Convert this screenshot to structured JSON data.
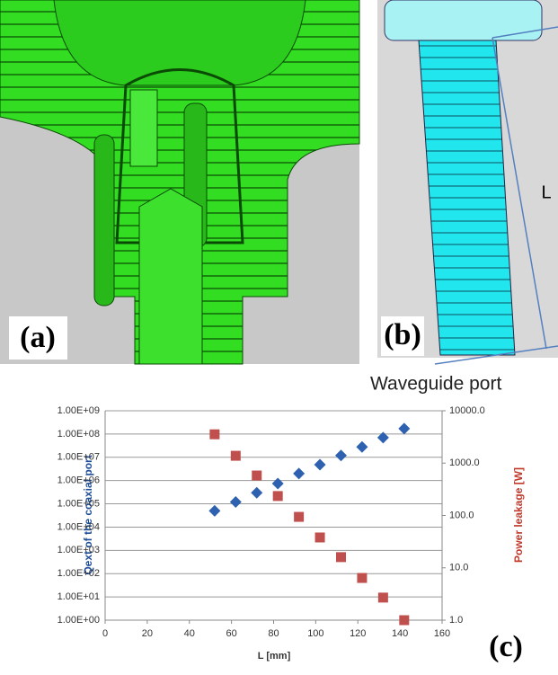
{
  "panels": {
    "a": "(a)",
    "b": "(b)",
    "c": "(c)",
    "length_label": "L",
    "port_label": "Waveguide port"
  },
  "chart_data": {
    "type": "scatter",
    "xlabel": "L [mm]",
    "ylabel": "Qext of the coaxial port",
    "y2label": "Power leakage [W]",
    "x": [
      52,
      62,
      72,
      82,
      92,
      102,
      112,
      122,
      132,
      142
    ],
    "series": [
      {
        "color": "#2e62b0",
        "marker": "diamond",
        "values": [
          50000,
          120000,
          300000,
          740000,
          2000000,
          4800000,
          12000000,
          28000000,
          70000000,
          170000000
        ]
      },
      {
        "color": "#c0504d",
        "marker": "square",
        "axis": "y2",
        "values": [
          3550,
          1380,
          580,
          235,
          94,
          38,
          16,
          6.4,
          2.7,
          1.0
        ]
      }
    ],
    "xlim": [
      0,
      160
    ],
    "xticks": [
      0,
      20,
      40,
      60,
      80,
      100,
      120,
      140,
      160
    ],
    "ylim": [
      1,
      1000000000
    ],
    "ylog": true,
    "yticks": [
      {
        "value": 1,
        "label": "1.00E+00"
      },
      {
        "value": 10,
        "label": "1.00E+01"
      },
      {
        "value": 100,
        "label": "1.00E+02"
      },
      {
        "value": 1000,
        "label": "1.00E+03"
      },
      {
        "value": 10000,
        "label": "1.00E+04"
      },
      {
        "value": 100000,
        "label": "1.00E+05"
      },
      {
        "value": 1000000,
        "label": "1.00E+06"
      },
      {
        "value": 10000000,
        "label": "1.00E+07"
      },
      {
        "value": 100000000,
        "label": "1.00E+08"
      },
      {
        "value": 1000000000,
        "label": "1.00E+09"
      }
    ],
    "y2lim": [
      1,
      10000
    ],
    "y2log": true,
    "y2ticks": [
      {
        "value": 1,
        "label": "1.0"
      },
      {
        "value": 10,
        "label": "10.0"
      },
      {
        "value": 100,
        "label": "100.0"
      },
      {
        "value": 1000,
        "label": "1000.0"
      },
      {
        "value": 10000,
        "label": "10000.0"
      }
    ],
    "grid": true
  }
}
